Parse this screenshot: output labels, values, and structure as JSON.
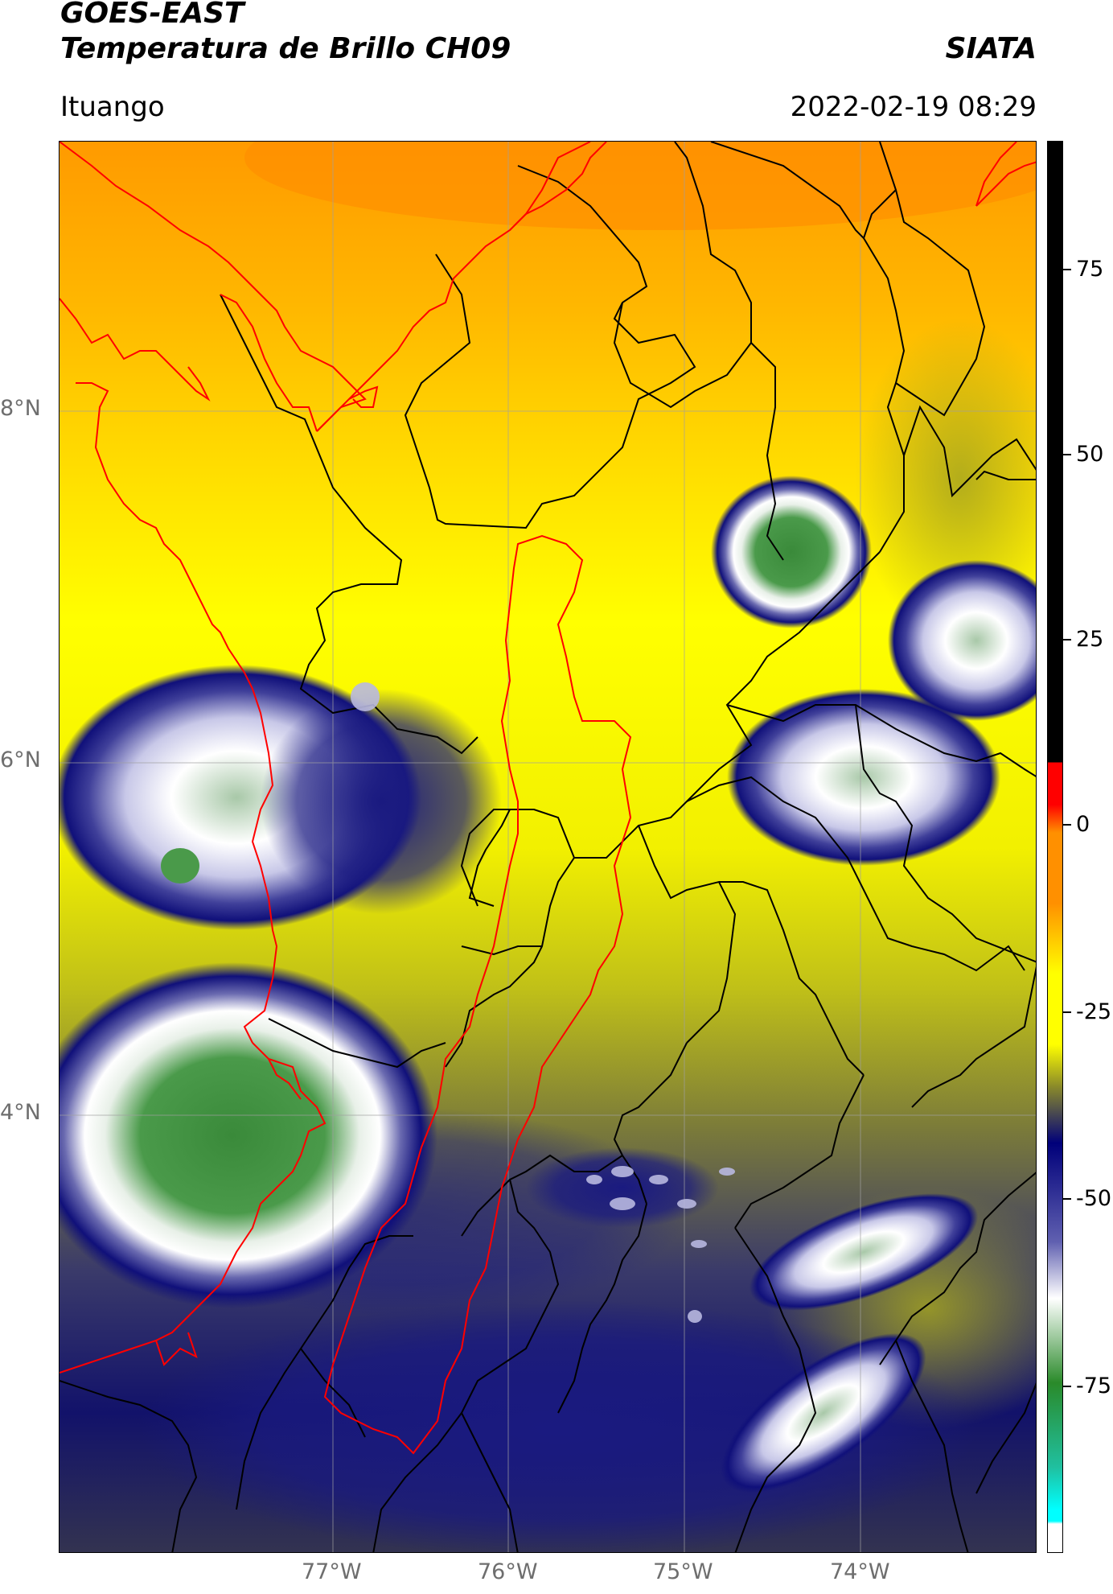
{
  "header": {
    "title_line1": "GOES-EAST",
    "title_line2": "Temperatura de Brillo CH09",
    "brand": "SIATA",
    "location": "Ituango",
    "datetime": "2022-02-19 08:29"
  },
  "map": {
    "lat_labels": [
      "8°N",
      "6°N",
      "4°N"
    ],
    "lon_labels": [
      "77°W",
      "76°W",
      "75°W",
      "74°W"
    ],
    "border_colors": {
      "country": "#ff0000",
      "department": "#000000",
      "gridline": "#a0a0a0"
    }
  },
  "colorbar": {
    "tick_labels": [
      "75",
      "50",
      "25",
      "0",
      "-25",
      "-50",
      "-75"
    ],
    "range": [
      -90,
      90
    ],
    "colors": {
      "warm_top": "#000000",
      "red": "#ff0000",
      "orange": "#ff9000",
      "yellow": "#ffff00",
      "olive": "#8a8a2a",
      "navy": "#00007a",
      "white": "#ffffff",
      "green": "#2a8a2a",
      "teal": "#20c0a0",
      "cyan": "#00ffff"
    }
  }
}
